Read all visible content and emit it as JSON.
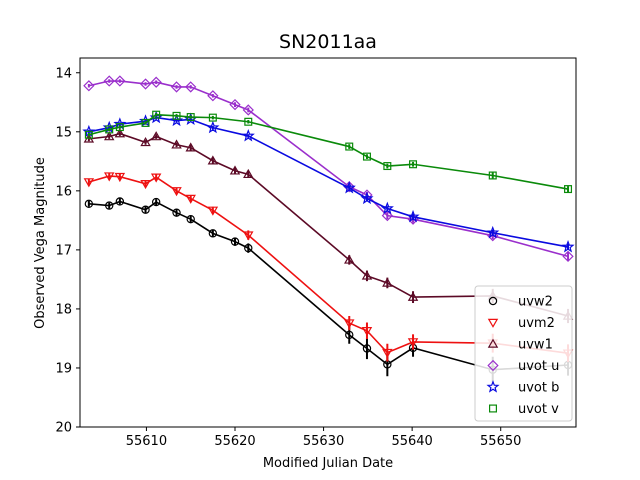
{
  "chart_data": {
    "type": "line",
    "title": "SN2011aa",
    "xlabel": "Modified Julian Date",
    "ylabel": "Observed Vega Magnitude",
    "xlim": [
      55602.5,
      55658.5
    ],
    "ylim": [
      20.0,
      13.75
    ],
    "y_inverted": true,
    "xticks": [
      55610,
      55620,
      55630,
      55640,
      55650
    ],
    "yticks": [
      14,
      15,
      16,
      17,
      18,
      19,
      20
    ],
    "grid": false,
    "legend_position": "lower right",
    "series": [
      {
        "name": "uvw2",
        "color": "#000000",
        "marker": "circle",
        "x": [
          55603.5,
          55605.8,
          55607.0,
          55609.9,
          55611.1,
          55613.4,
          55615.0,
          55617.5,
          55620.0,
          55621.5,
          55632.9,
          55634.9,
          55637.2,
          55640.1,
          55649.1,
          55657.6
        ],
        "y": [
          16.22,
          16.25,
          16.18,
          16.32,
          16.19,
          16.37,
          16.48,
          16.72,
          16.86,
          16.97,
          18.44,
          18.67,
          18.94,
          18.66,
          19.03,
          18.95
        ],
        "yerr": [
          0.05,
          0.05,
          0.05,
          0.06,
          0.05,
          0.06,
          0.06,
          0.06,
          0.07,
          0.08,
          0.15,
          0.18,
          0.2,
          0.15,
          0.22,
          0.18
        ]
      },
      {
        "name": "uvm2",
        "color": "#ee1111",
        "marker": "triangle-down",
        "x": [
          55603.5,
          55605.8,
          55607.0,
          55609.9,
          55611.1,
          55613.4,
          55615.0,
          55617.5,
          55621.5,
          55632.9,
          55634.9,
          55637.2,
          55640.1,
          55649.1,
          55657.6
        ],
        "y": [
          15.85,
          15.75,
          15.76,
          15.88,
          15.77,
          16.0,
          16.13,
          16.33,
          16.75,
          18.24,
          18.37,
          18.74,
          18.56,
          18.58,
          18.75
        ],
        "yerr": [
          0.05,
          0.05,
          0.05,
          0.05,
          0.05,
          0.05,
          0.06,
          0.06,
          0.08,
          0.12,
          0.14,
          0.15,
          0.13,
          0.16,
          0.15
        ]
      },
      {
        "name": "uvw1",
        "color": "#5c0a26",
        "marker": "triangle-up",
        "x": [
          55603.5,
          55605.8,
          55607.0,
          55609.9,
          55611.1,
          55613.4,
          55615.0,
          55617.5,
          55620.0,
          55621.5,
          55632.9,
          55634.9,
          55637.2,
          55640.1,
          55649.1,
          55657.6
        ],
        "y": [
          15.12,
          15.08,
          15.03,
          15.18,
          15.08,
          15.22,
          15.27,
          15.49,
          15.66,
          15.72,
          17.17,
          17.44,
          17.56,
          17.8,
          17.78,
          18.12
        ],
        "yerr": [
          0.04,
          0.04,
          0.04,
          0.04,
          0.04,
          0.04,
          0.05,
          0.05,
          0.05,
          0.06,
          0.08,
          0.09,
          0.09,
          0.1,
          0.12,
          0.12
        ]
      },
      {
        "name": "uvot u",
        "color": "#9a2fcc",
        "marker": "diamond",
        "x": [
          55603.5,
          55605.8,
          55607.0,
          55609.9,
          55611.1,
          55613.4,
          55615.0,
          55617.5,
          55620.0,
          55621.5,
          55632.9,
          55634.9,
          55637.2,
          55640.1,
          55649.1,
          55657.6
        ],
        "y": [
          14.22,
          14.14,
          14.14,
          14.19,
          14.16,
          14.24,
          14.24,
          14.39,
          14.54,
          14.63,
          15.93,
          16.07,
          16.42,
          16.48,
          16.76,
          17.11
        ],
        "yerr": [
          0.03,
          0.03,
          0.03,
          0.03,
          0.03,
          0.03,
          0.03,
          0.03,
          0.04,
          0.04,
          0.05,
          0.05,
          0.06,
          0.06,
          0.06,
          0.07
        ]
      },
      {
        "name": "uvot b",
        "color": "#0a0ae0",
        "marker": "star",
        "x": [
          55603.5,
          55605.8,
          55607.0,
          55609.9,
          55611.1,
          55613.4,
          55615.0,
          55617.5,
          55621.5,
          55632.9,
          55634.9,
          55637.2,
          55640.1,
          55649.1,
          55657.6
        ],
        "y": [
          15.0,
          14.93,
          14.87,
          14.82,
          14.76,
          14.81,
          14.79,
          14.93,
          15.07,
          15.95,
          16.13,
          16.3,
          16.44,
          16.71,
          16.95
        ],
        "yerr": [
          0.03,
          0.03,
          0.03,
          0.03,
          0.03,
          0.03,
          0.03,
          0.03,
          0.03,
          0.04,
          0.04,
          0.04,
          0.05,
          0.05,
          0.05
        ]
      },
      {
        "name": "uvot v",
        "color": "#0a8a0a",
        "marker": "square",
        "x": [
          55603.5,
          55605.8,
          55607.0,
          55609.9,
          55611.1,
          55613.4,
          55615.0,
          55617.5,
          55621.5,
          55632.9,
          55634.9,
          55637.2,
          55640.1,
          55649.1,
          55657.6
        ],
        "y": [
          15.05,
          14.96,
          14.92,
          14.85,
          14.71,
          14.73,
          14.75,
          14.76,
          14.83,
          15.25,
          15.42,
          15.58,
          15.55,
          15.74,
          15.97
        ],
        "yerr": [
          0.03,
          0.03,
          0.03,
          0.03,
          0.03,
          0.03,
          0.03,
          0.03,
          0.03,
          0.04,
          0.04,
          0.04,
          0.04,
          0.05,
          0.05
        ]
      }
    ]
  }
}
